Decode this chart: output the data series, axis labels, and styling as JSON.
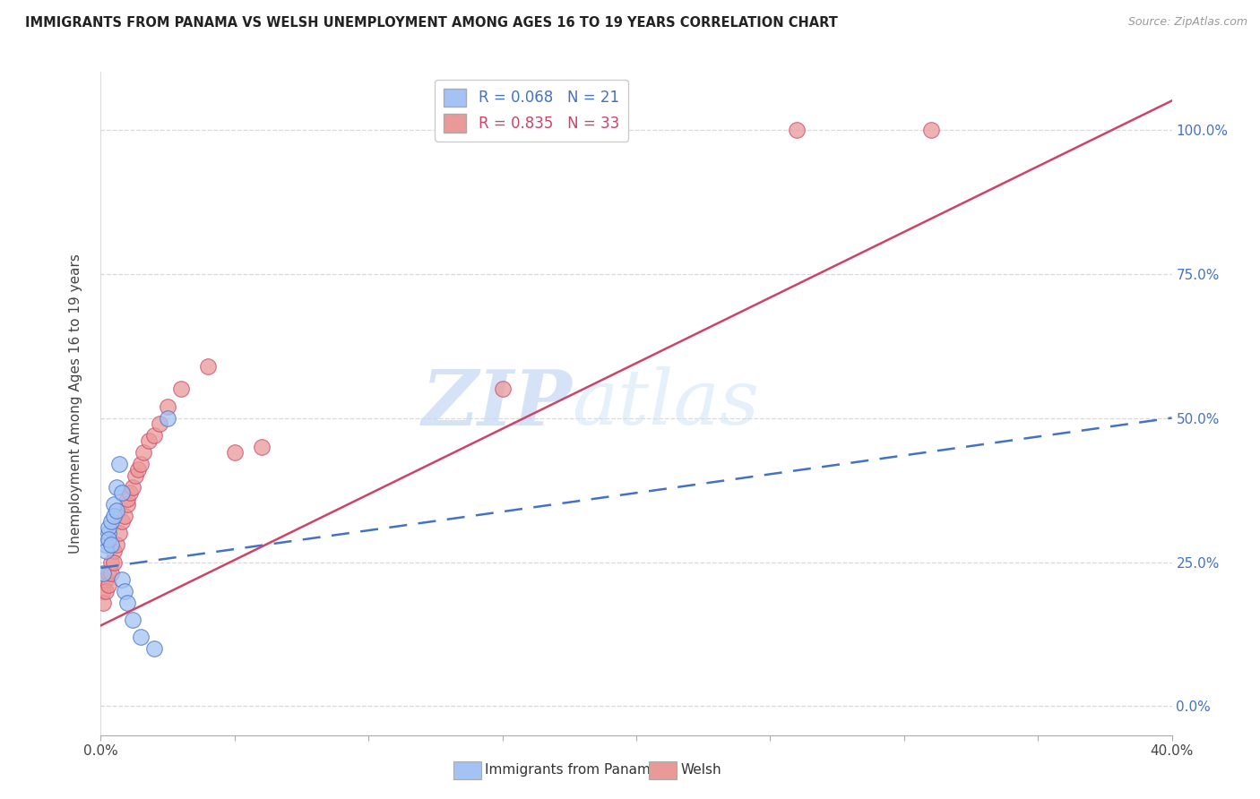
{
  "title": "IMMIGRANTS FROM PANAMA VS WELSH UNEMPLOYMENT AMONG AGES 16 TO 19 YEARS CORRELATION CHART",
  "source": "Source: ZipAtlas.com",
  "ylabel": "Unemployment Among Ages 16 to 19 years",
  "xlim": [
    0.0,
    0.4
  ],
  "ylim": [
    -0.05,
    1.1
  ],
  "xticks": [
    0.0,
    0.05,
    0.1,
    0.15,
    0.2,
    0.25,
    0.3,
    0.35,
    0.4
  ],
  "xtick_labels_show": [
    "0.0%",
    "",
    "",
    "",
    "",
    "",
    "",
    "",
    "40.0%"
  ],
  "yticks_right": [
    0.0,
    0.25,
    0.5,
    0.75,
    1.0
  ],
  "ytick_labels_right": [
    "0.0%",
    "25.0%",
    "50.0%",
    "75.0%",
    "100.0%"
  ],
  "blue_R": 0.068,
  "blue_N": 21,
  "pink_R": 0.835,
  "pink_N": 33,
  "blue_color": "#a4c2f4",
  "pink_color": "#ea9999",
  "blue_line_color": "#4472c4",
  "pink_line_color": "#cc4466",
  "watermark_zip": "ZIP",
  "watermark_atlas": "atlas",
  "legend_label_blue": "Immigrants from Panama",
  "legend_label_pink": "Welsh",
  "blue_scatter_x": [
    0.001,
    0.002,
    0.002,
    0.003,
    0.003,
    0.003,
    0.004,
    0.004,
    0.005,
    0.005,
    0.006,
    0.006,
    0.007,
    0.008,
    0.008,
    0.009,
    0.01,
    0.012,
    0.015,
    0.02,
    0.025
  ],
  "blue_scatter_y": [
    0.23,
    0.28,
    0.27,
    0.3,
    0.31,
    0.29,
    0.32,
    0.28,
    0.35,
    0.33,
    0.38,
    0.34,
    0.42,
    0.37,
    0.22,
    0.2,
    0.18,
    0.15,
    0.12,
    0.1,
    0.5
  ],
  "pink_scatter_x": [
    0.001,
    0.001,
    0.002,
    0.002,
    0.003,
    0.003,
    0.004,
    0.004,
    0.005,
    0.005,
    0.006,
    0.007,
    0.008,
    0.009,
    0.01,
    0.01,
    0.011,
    0.012,
    0.013,
    0.014,
    0.015,
    0.016,
    0.018,
    0.02,
    0.022,
    0.025,
    0.03,
    0.04,
    0.05,
    0.06,
    0.15,
    0.26,
    0.31
  ],
  "pink_scatter_y": [
    0.2,
    0.18,
    0.22,
    0.2,
    0.23,
    0.21,
    0.25,
    0.23,
    0.27,
    0.25,
    0.28,
    0.3,
    0.32,
    0.33,
    0.35,
    0.36,
    0.37,
    0.38,
    0.4,
    0.41,
    0.42,
    0.44,
    0.46,
    0.47,
    0.49,
    0.52,
    0.55,
    0.59,
    0.44,
    0.45,
    0.55,
    1.0,
    1.0
  ],
  "blue_trend_x": [
    0.0,
    0.4
  ],
  "blue_trend_y": [
    0.24,
    0.5
  ],
  "pink_trend_x": [
    0.0,
    0.4
  ],
  "pink_trend_y": [
    0.14,
    1.05
  ],
  "background_color": "#ffffff",
  "grid_color": "#d9d9d9"
}
